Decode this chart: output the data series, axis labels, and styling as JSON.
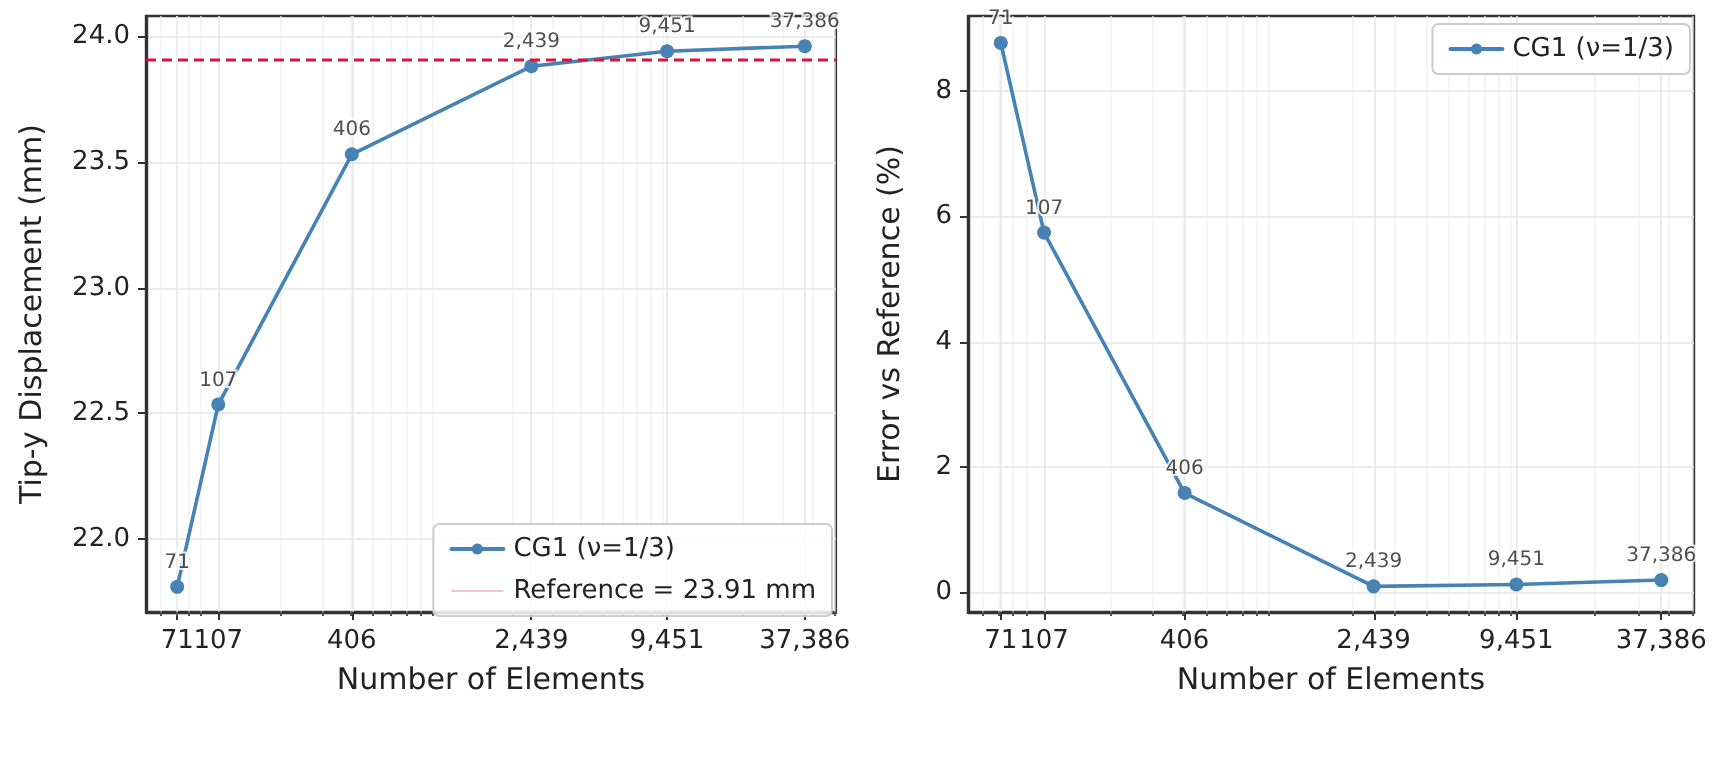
{
  "chart_data": [
    {
      "type": "line",
      "xlabel": "Number of Elements",
      "ylabel": "Tip-y Displacement (mm)",
      "log": "x",
      "grid": true,
      "legend": "bottom right",
      "marker": "circle",
      "line_style": "solid",
      "xlim": [
        52,
        51000
      ],
      "xticks": [
        71,
        107,
        406,
        {
          "value": 2439,
          "label": "2,439"
        },
        {
          "value": 9451,
          "label": "9,451"
        },
        {
          "value": 37386,
          "label": "37,386"
        }
      ],
      "ylim": [
        21.71,
        24.08
      ],
      "yticks": [
        {
          "value": 22,
          "label": "22.0"
        },
        22.5,
        {
          "value": 23,
          "label": "23.0"
        },
        23.5,
        {
          "value": 24,
          "label": "24.0"
        }
      ],
      "x": [
        71,
        107,
        406,
        2439,
        9451,
        37386
      ],
      "series": [
        {
          "name": "CG1 (ν=1/3)",
          "color": "#4682b4",
          "values": [
            21.81,
            22.535,
            23.53,
            23.88,
            23.94,
            23.96
          ]
        }
      ],
      "annotations": [
        {
          "text": "71",
          "x": 71,
          "y": 21.81
        },
        {
          "text": "107",
          "x": 107,
          "y": 22.535
        },
        {
          "text": "406",
          "x": 406,
          "y": 23.53
        },
        {
          "text": "2,439",
          "x": 2439,
          "y": 23.88
        },
        {
          "text": "9,451",
          "x": 9451,
          "y": 23.94
        },
        {
          "text": "37,386",
          "x": 37386,
          "y": 23.96
        }
      ],
      "ref_lines": [
        {
          "axis": "y",
          "value": 23.91,
          "label": "Reference = 23.91 mm",
          "color": "#dc143c",
          "line_style": "dashed"
        }
      ]
    },
    {
      "type": "line",
      "xlabel": "Number of Elements",
      "ylabel": "Error vs Reference (%)",
      "log": "x",
      "grid": true,
      "legend": "top right",
      "marker": "circle",
      "line_style": "solid",
      "xlim": [
        52,
        51000
      ],
      "xticks": [
        71,
        107,
        406,
        {
          "value": 2439,
          "label": "2,439"
        },
        {
          "value": 9451,
          "label": "9,451"
        },
        {
          "value": 37386,
          "label": "37,386"
        }
      ],
      "ylim": [
        -0.32,
        9.2
      ],
      "yticks": [
        0,
        2,
        4,
        6,
        8
      ],
      "x": [
        71,
        107,
        406,
        2439,
        9451,
        37386
      ],
      "series": [
        {
          "name": "CG1 (ν=1/3)",
          "color": "#4682b4",
          "values": [
            8.77,
            5.74,
            1.58,
            0.09,
            0.12,
            0.19
          ]
        }
      ],
      "annotations": [
        {
          "text": "71",
          "x": 71,
          "y": 8.77
        },
        {
          "text": "107",
          "x": 107,
          "y": 5.74
        },
        {
          "text": "406",
          "x": 406,
          "y": 1.58
        },
        {
          "text": "2,439",
          "x": 2439,
          "y": 0.09
        },
        {
          "text": "9,451",
          "x": 9451,
          "y": 0.12
        },
        {
          "text": "37,386",
          "x": 37386,
          "y": 0.19
        }
      ]
    }
  ]
}
